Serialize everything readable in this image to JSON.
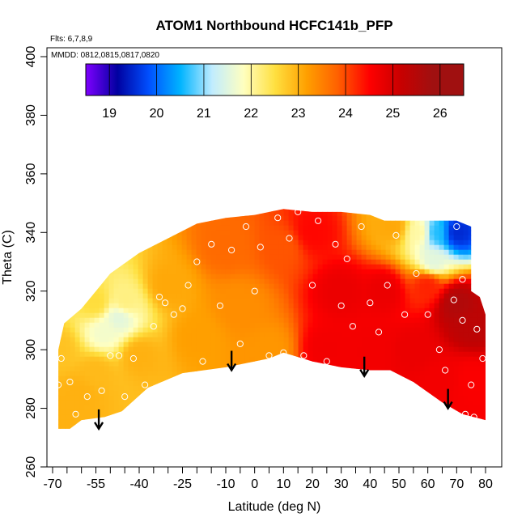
{
  "chart_data": {
    "type": "heatmap",
    "title": "ATOM1 Northbound HCFC141b_PFP",
    "notes": [
      "Flts: 6,7,8,9",
      "MMDD: 0812,0815,0817,0820"
    ],
    "xlabel": "Latitude (deg N)",
    "ylabel": "Theta (C)",
    "xlim": [
      -70,
      80
    ],
    "ylim": [
      260,
      400
    ],
    "x_ticks": [
      -70,
      -55,
      -40,
      -25,
      -10,
      0,
      10,
      20,
      30,
      40,
      50,
      60,
      70,
      80
    ],
    "y_ticks": [
      260,
      280,
      300,
      320,
      340,
      360,
      380,
      400
    ],
    "colorbar": {
      "range": [
        18.5,
        26.5
      ],
      "ticks": [
        19,
        20,
        21,
        22,
        23,
        24,
        25,
        26
      ],
      "colors": [
        "#7f00ff",
        "#0000a0",
        "#0050ff",
        "#00b4ff",
        "#c0ecff",
        "#ffffc0",
        "#ffe040",
        "#ffa000",
        "#ff6000",
        "#ff0000",
        "#c80000",
        "#a01010"
      ]
    },
    "grid": false,
    "domain_boundary": [
      [
        -68,
        273
      ],
      [
        -64,
        273
      ],
      [
        -60,
        276
      ],
      [
        -52,
        277
      ],
      [
        -46,
        279
      ],
      [
        -37,
        287
      ],
      [
        -25,
        292
      ],
      [
        -10,
        294
      ],
      [
        0,
        296
      ],
      [
        5,
        297
      ],
      [
        10,
        299
      ],
      [
        20,
        296
      ],
      [
        30,
        294
      ],
      [
        40,
        293
      ],
      [
        47,
        293
      ],
      [
        55,
        289
      ],
      [
        65,
        282
      ],
      [
        72,
        278
      ],
      [
        80,
        276
      ],
      [
        80,
        312
      ],
      [
        78,
        318
      ],
      [
        75,
        320
      ],
      [
        75,
        342
      ],
      [
        70,
        344
      ],
      [
        45,
        344
      ],
      [
        40,
        346
      ],
      [
        30,
        347
      ],
      [
        20,
        347
      ],
      [
        10,
        348
      ],
      [
        0,
        346
      ],
      [
        -10,
        345
      ],
      [
        -20,
        343
      ],
      [
        -30,
        338
      ],
      [
        -40,
        333
      ],
      [
        -50,
        326
      ],
      [
        -55,
        320
      ],
      [
        -60,
        314
      ],
      [
        -66,
        309
      ],
      [
        -68,
        300
      ]
    ],
    "field_anchors": [
      {
        "lat": -68,
        "theta": 280,
        "value": 23.4
      },
      {
        "lat": -68,
        "theta": 300,
        "value": 23.2
      },
      {
        "lat": -60,
        "theta": 285,
        "value": 23.4
      },
      {
        "lat": -55,
        "theta": 292,
        "value": 23.3
      },
      {
        "lat": -52,
        "theta": 306,
        "value": 22.0
      },
      {
        "lat": -47,
        "theta": 311,
        "value": 21.8
      },
      {
        "lat": -45,
        "theta": 316,
        "value": 22.5
      },
      {
        "lat": -55,
        "theta": 316,
        "value": 22.9
      },
      {
        "lat": -40,
        "theta": 298,
        "value": 23.4
      },
      {
        "lat": -30,
        "theta": 322,
        "value": 23.5
      },
      {
        "lat": -20,
        "theta": 304,
        "value": 23.6
      },
      {
        "lat": -10,
        "theta": 335,
        "value": 24.2
      },
      {
        "lat": -5,
        "theta": 315,
        "value": 23.8
      },
      {
        "lat": 5,
        "theta": 300,
        "value": 23.7
      },
      {
        "lat": 10,
        "theta": 335,
        "value": 24.4
      },
      {
        "lat": 20,
        "theta": 340,
        "value": 25.0
      },
      {
        "lat": 25,
        "theta": 300,
        "value": 25.2
      },
      {
        "lat": 30,
        "theta": 320,
        "value": 25.3
      },
      {
        "lat": 40,
        "theta": 300,
        "value": 25.2
      },
      {
        "lat": 45,
        "theta": 320,
        "value": 25.3
      },
      {
        "lat": 48,
        "theta": 342,
        "value": 23.5
      },
      {
        "lat": 57,
        "theta": 340,
        "value": 22.3
      },
      {
        "lat": 63,
        "theta": 340,
        "value": 20.8
      },
      {
        "lat": 70,
        "theta": 340,
        "value": 19.6
      },
      {
        "lat": 62,
        "theta": 330,
        "value": 21.8
      },
      {
        "lat": 60,
        "theta": 322,
        "value": 24.8
      },
      {
        "lat": 55,
        "theta": 300,
        "value": 25.3
      },
      {
        "lat": 70,
        "theta": 316,
        "value": 26.2
      },
      {
        "lat": 65,
        "theta": 290,
        "value": 25.2
      },
      {
        "lat": 75,
        "theta": 290,
        "value": 25.1
      },
      {
        "lat": 75,
        "theta": 308,
        "value": 26.0
      }
    ],
    "sample_points": [
      [
        -68,
        288
      ],
      [
        -67,
        297
      ],
      [
        -64,
        289
      ],
      [
        -62,
        278
      ],
      [
        -58,
        284
      ],
      [
        -53,
        286
      ],
      [
        -50,
        298
      ],
      [
        -47,
        298
      ],
      [
        -45,
        284
      ],
      [
        -42,
        297
      ],
      [
        -38,
        288
      ],
      [
        -35,
        308
      ],
      [
        -33,
        318
      ],
      [
        -31,
        316
      ],
      [
        -28,
        312
      ],
      [
        -25,
        314
      ],
      [
        -23,
        322
      ],
      [
        -20,
        330
      ],
      [
        -18,
        296
      ],
      [
        -15,
        336
      ],
      [
        -12,
        315
      ],
      [
        -8,
        334
      ],
      [
        -5,
        302
      ],
      [
        -3,
        342
      ],
      [
        0,
        320
      ],
      [
        2,
        335
      ],
      [
        5,
        298
      ],
      [
        8,
        345
      ],
      [
        10,
        299
      ],
      [
        12,
        338
      ],
      [
        15,
        347
      ],
      [
        17,
        298
      ],
      [
        20,
        322
      ],
      [
        22,
        344
      ],
      [
        25,
        296
      ],
      [
        28,
        336
      ],
      [
        30,
        315
      ],
      [
        32,
        331
      ],
      [
        34,
        308
      ],
      [
        37,
        342
      ],
      [
        40,
        316
      ],
      [
        43,
        306
      ],
      [
        46,
        322
      ],
      [
        49,
        339
      ],
      [
        52,
        312
      ],
      [
        56,
        326
      ],
      [
        60,
        312
      ],
      [
        64,
        300
      ],
      [
        66,
        293
      ],
      [
        69,
        317
      ],
      [
        72,
        310
      ],
      [
        73,
        278
      ],
      [
        75,
        288
      ],
      [
        77,
        307
      ],
      [
        79,
        297
      ],
      [
        70,
        342
      ],
      [
        72,
        324
      ],
      [
        76,
        277
      ]
    ],
    "arrows": [
      {
        "lat": -54,
        "theta": 273
      },
      {
        "lat": -8,
        "theta": 293
      },
      {
        "lat": 38,
        "theta": 291
      },
      {
        "lat": 67,
        "theta": 280
      }
    ]
  }
}
